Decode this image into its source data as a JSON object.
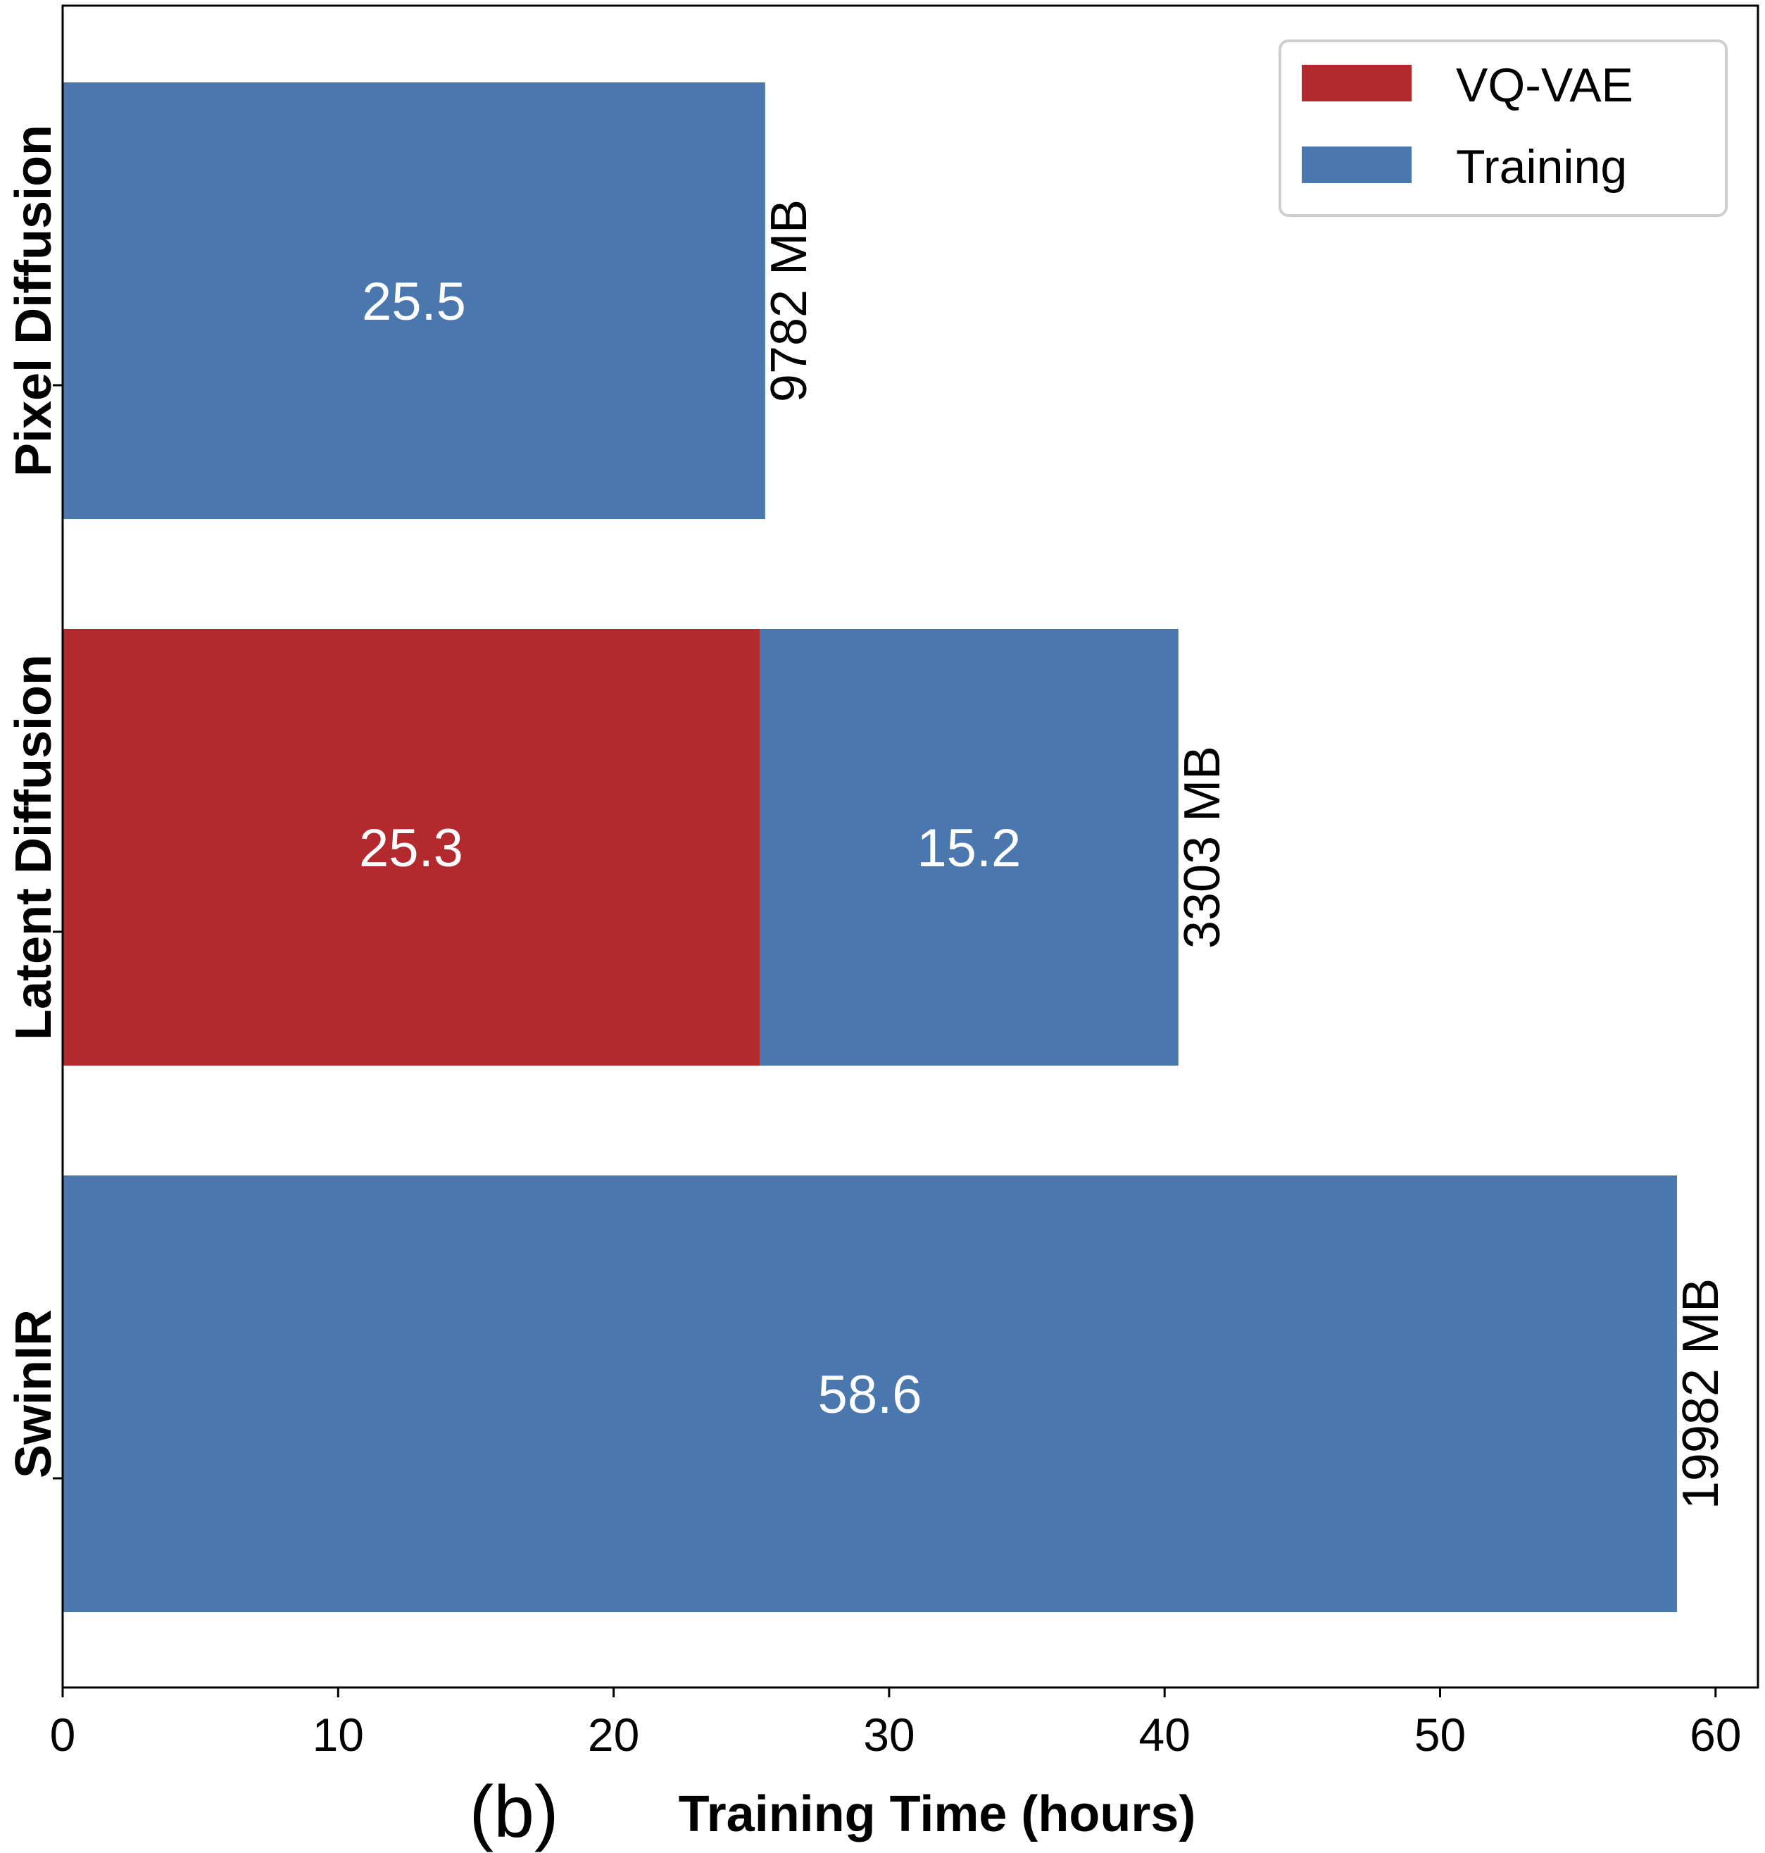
{
  "chart_data": {
    "type": "bar",
    "orientation": "horizontal",
    "stacked": true,
    "title": "",
    "panel_label": "(b)",
    "xlabel": "Training Time (hours)",
    "ylabel": "",
    "xlim": [
      0,
      61.5
    ],
    "xticks": [
      0,
      10,
      20,
      30,
      40,
      50,
      60
    ],
    "categories": [
      "Pixel Diffusion",
      "Latent Diffusion",
      "SwinIR"
    ],
    "series": [
      {
        "name": "VQ-VAE",
        "color": "#b4292e",
        "values": [
          0,
          25.3,
          0
        ]
      },
      {
        "name": "Training",
        "color": "#4a77ae",
        "values": [
          25.5,
          15.2,
          58.6
        ]
      }
    ],
    "segment_labels": [
      [
        "",
        "25.5"
      ],
      [
        "25.3",
        "15.2"
      ],
      [
        "",
        "58.6"
      ]
    ],
    "memory_labels": [
      "9782 MB",
      "3303 MB",
      "19982 MB"
    ],
    "legend": {
      "position": "top-right",
      "entries": [
        "VQ-VAE",
        "Training"
      ]
    },
    "grid": false
  }
}
